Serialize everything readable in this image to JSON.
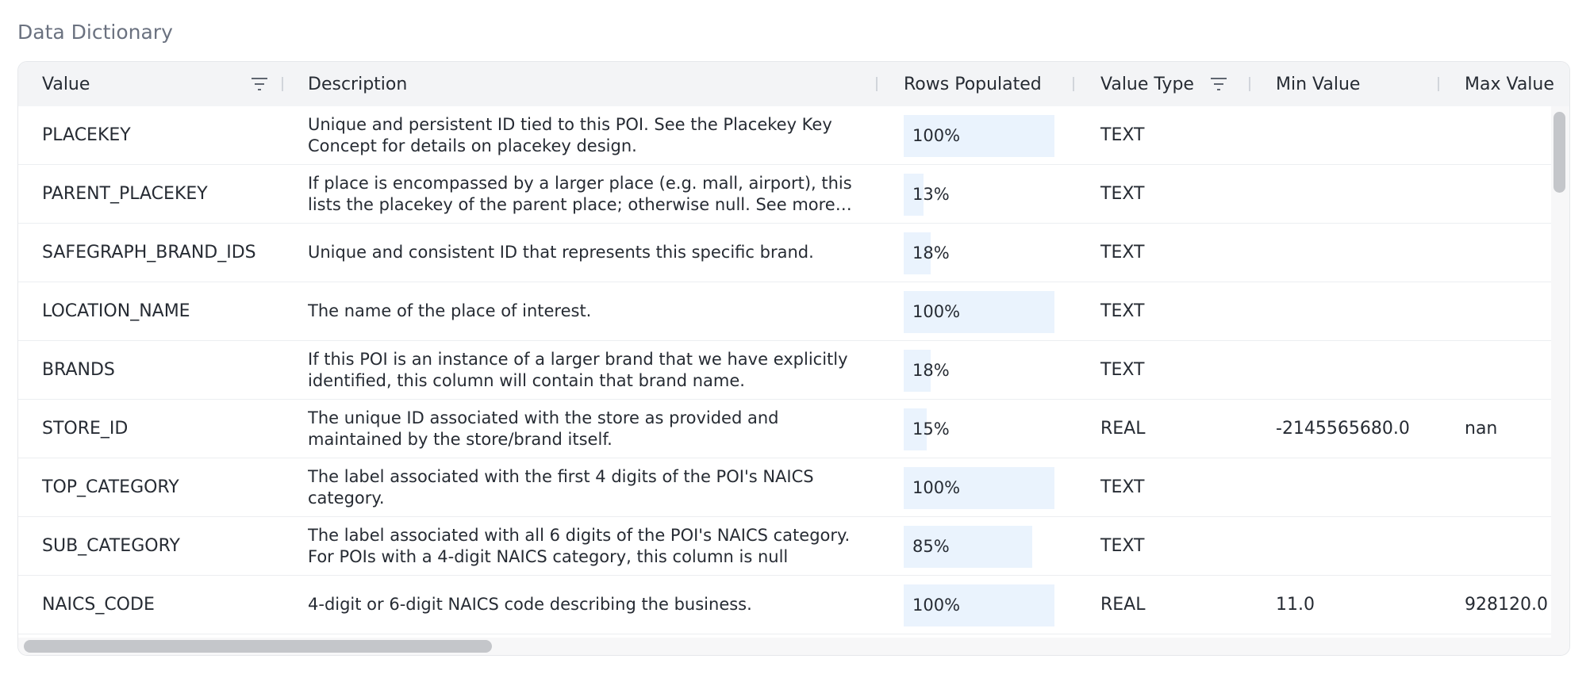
{
  "page_title": "Data Dictionary",
  "columns": [
    {
      "label": "Value",
      "has_filter": true
    },
    {
      "label": "Description",
      "has_filter": false
    },
    {
      "label": "Rows Populated",
      "has_filter": false
    },
    {
      "label": "Value Type",
      "has_filter": true
    },
    {
      "label": "Min Value",
      "has_filter": false
    },
    {
      "label": "Max Value",
      "has_filter": false
    }
  ],
  "rows": [
    {
      "value": "PLACEKEY",
      "description": "Unique and persistent ID tied to this POI. See the Placekey Key Concept for details on placekey design.",
      "rows_populated": "100%",
      "populated_fraction": 1.0,
      "value_type": "TEXT",
      "min": "",
      "max": ""
    },
    {
      "value": "PARENT_PLACEKEY",
      "description": "If place is encompassed by a larger place (e.g. mall, airport), this lists the placekey of the parent place; otherwise null. See more on parent-child relationships.",
      "rows_populated": "13%",
      "populated_fraction": 0.13,
      "value_type": "TEXT",
      "min": "",
      "max": ""
    },
    {
      "value": "SAFEGRAPH_BRAND_IDS",
      "description": "Unique and consistent ID that represents this specific brand.",
      "rows_populated": "18%",
      "populated_fraction": 0.18,
      "value_type": "TEXT",
      "min": "",
      "max": ""
    },
    {
      "value": "LOCATION_NAME",
      "description": "The name of the place of interest.",
      "rows_populated": "100%",
      "populated_fraction": 1.0,
      "value_type": "TEXT",
      "min": "",
      "max": ""
    },
    {
      "value": "BRANDS",
      "description": "If this POI is an instance of a larger brand that we have explicitly identified, this column will contain that brand name.",
      "rows_populated": "18%",
      "populated_fraction": 0.18,
      "value_type": "TEXT",
      "min": "",
      "max": ""
    },
    {
      "value": "STORE_ID",
      "description": "The unique ID associated with the store as provided and maintained by the store/brand itself.",
      "rows_populated": "15%",
      "populated_fraction": 0.15,
      "value_type": "REAL",
      "min": "-2145565680.0",
      "max": "nan"
    },
    {
      "value": "TOP_CATEGORY",
      "description": "The label associated with the first 4 digits of the POI's NAICS category.",
      "rows_populated": "100%",
      "populated_fraction": 1.0,
      "value_type": "TEXT",
      "min": "",
      "max": ""
    },
    {
      "value": "SUB_CATEGORY",
      "description": "The label associated with all 6 digits of the POI's NAICS category. For POIs with a 4-digit NAICS category, this column is null",
      "rows_populated": "85%",
      "populated_fraction": 0.85,
      "value_type": "TEXT",
      "min": "",
      "max": ""
    },
    {
      "value": "NAICS_CODE",
      "description": "4-digit or 6-digit NAICS code describing the business.",
      "rows_populated": "100%",
      "populated_fraction": 1.0,
      "value_type": "REAL",
      "min": "11.0",
      "max": "928120.0"
    }
  ],
  "icons": {
    "filter": "filter-icon"
  },
  "colors": {
    "bar_fill": "#eaf3fd",
    "header_bg": "#f3f4f6",
    "title": "#6b7280"
  }
}
